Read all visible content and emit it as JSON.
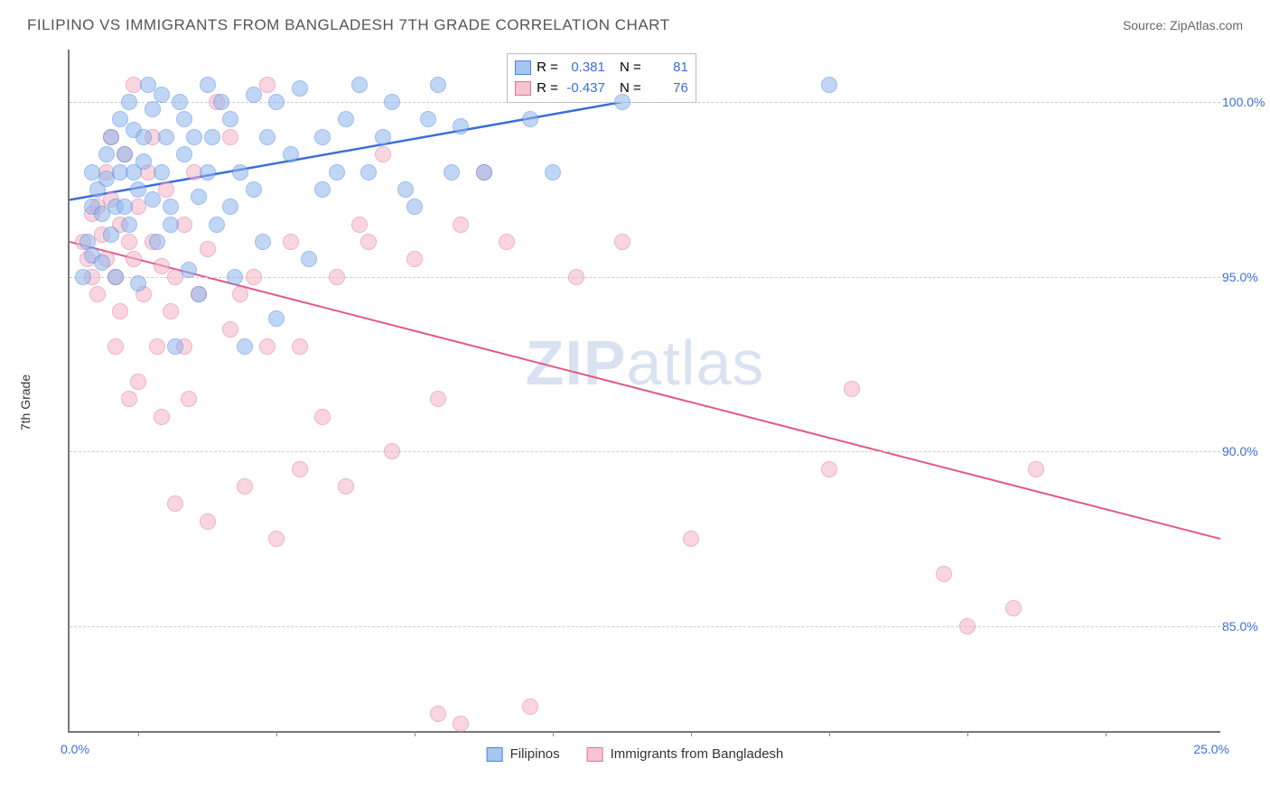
{
  "header": {
    "title": "FILIPINO VS IMMIGRANTS FROM BANGLADESH 7TH GRADE CORRELATION CHART",
    "source_prefix": "Source: ",
    "source": "ZipAtlas.com"
  },
  "chart": {
    "type": "scatter",
    "ylabel": "7th Grade",
    "xlim": [
      0,
      25
    ],
    "ylim": [
      82,
      101.5
    ],
    "x_axis": {
      "min_label": "0.0%",
      "max_label": "25.0%",
      "tick_positions_pct": [
        6,
        18,
        30,
        42,
        54,
        66,
        78,
        90
      ]
    },
    "y_axis": {
      "ticks": [
        {
          "value": 85,
          "label": "85.0%"
        },
        {
          "value": 90,
          "label": "90.0%"
        },
        {
          "value": 95,
          "label": "95.0%"
        },
        {
          "value": 100,
          "label": "100.0%"
        }
      ]
    },
    "grid_color": "#cccccc",
    "background_color": "#ffffff",
    "colors": {
      "series_a_fill": "#8fb6ec",
      "series_a_line": "#3b6fd8",
      "series_b_fill": "#f5b6c6",
      "series_b_line": "#e05a85",
      "label_text": "#3b6fd8"
    },
    "series_a": {
      "name": "Filipinos",
      "R": "0.381",
      "N": "81",
      "trend": {
        "x1": 0,
        "y1": 97.2,
        "x2": 12,
        "y2": 100.0
      },
      "points": [
        [
          0.3,
          95.0
        ],
        [
          0.4,
          96.0
        ],
        [
          0.5,
          95.6
        ],
        [
          0.5,
          97.0
        ],
        [
          0.5,
          98.0
        ],
        [
          0.6,
          97.5
        ],
        [
          0.7,
          95.4
        ],
        [
          0.7,
          96.8
        ],
        [
          0.8,
          98.5
        ],
        [
          0.8,
          97.8
        ],
        [
          0.9,
          96.2
        ],
        [
          0.9,
          99.0
        ],
        [
          1.0,
          97.0
        ],
        [
          1.0,
          95.0
        ],
        [
          1.1,
          98.0
        ],
        [
          1.1,
          99.5
        ],
        [
          1.2,
          98.5
        ],
        [
          1.2,
          97.0
        ],
        [
          1.3,
          96.5
        ],
        [
          1.3,
          100.0
        ],
        [
          1.4,
          98.0
        ],
        [
          1.4,
          99.2
        ],
        [
          1.5,
          97.5
        ],
        [
          1.5,
          94.8
        ],
        [
          1.6,
          99.0
        ],
        [
          1.6,
          98.3
        ],
        [
          1.7,
          100.5
        ],
        [
          1.8,
          97.2
        ],
        [
          1.8,
          99.8
        ],
        [
          1.9,
          96.0
        ],
        [
          2.0,
          98.0
        ],
        [
          2.0,
          100.2
        ],
        [
          2.1,
          99.0
        ],
        [
          2.2,
          97.0
        ],
        [
          2.2,
          96.5
        ],
        [
          2.3,
          93.0
        ],
        [
          2.4,
          100.0
        ],
        [
          2.5,
          98.5
        ],
        [
          2.5,
          99.5
        ],
        [
          2.6,
          95.2
        ],
        [
          2.7,
          99.0
        ],
        [
          2.8,
          97.3
        ],
        [
          2.8,
          94.5
        ],
        [
          3.0,
          100.5
        ],
        [
          3.0,
          98.0
        ],
        [
          3.1,
          99.0
        ],
        [
          3.2,
          96.5
        ],
        [
          3.3,
          100.0
        ],
        [
          3.5,
          97.0
        ],
        [
          3.5,
          99.5
        ],
        [
          3.6,
          95.0
        ],
        [
          3.7,
          98.0
        ],
        [
          3.8,
          93.0
        ],
        [
          4.0,
          100.2
        ],
        [
          4.0,
          97.5
        ],
        [
          4.2,
          96.0
        ],
        [
          4.3,
          99.0
        ],
        [
          4.5,
          93.8
        ],
        [
          4.5,
          100.0
        ],
        [
          4.8,
          98.5
        ],
        [
          5.0,
          100.4
        ],
        [
          5.2,
          95.5
        ],
        [
          5.5,
          99.0
        ],
        [
          5.5,
          97.5
        ],
        [
          5.8,
          98.0
        ],
        [
          6.0,
          99.5
        ],
        [
          6.3,
          100.5
        ],
        [
          6.5,
          98.0
        ],
        [
          6.8,
          99.0
        ],
        [
          7.0,
          100.0
        ],
        [
          7.3,
          97.5
        ],
        [
          7.5,
          97.0
        ],
        [
          7.8,
          99.5
        ],
        [
          8.0,
          100.5
        ],
        [
          8.3,
          98.0
        ],
        [
          8.5,
          99.3
        ],
        [
          9.0,
          98.0
        ],
        [
          10.0,
          99.5
        ],
        [
          10.5,
          98.0
        ],
        [
          12.0,
          100.0
        ],
        [
          16.5,
          100.5
        ]
      ]
    },
    "series_b": {
      "name": "Immigrants from Bangladesh",
      "R": "-0.437",
      "N": "76",
      "trend": {
        "x1": 0,
        "y1": 96.0,
        "x2": 25,
        "y2": 87.5
      },
      "points": [
        [
          0.3,
          96.0
        ],
        [
          0.4,
          95.5
        ],
        [
          0.5,
          96.8
        ],
        [
          0.5,
          95.0
        ],
        [
          0.6,
          97.0
        ],
        [
          0.6,
          94.5
        ],
        [
          0.7,
          96.2
        ],
        [
          0.8,
          98.0
        ],
        [
          0.8,
          95.5
        ],
        [
          0.9,
          97.2
        ],
        [
          0.9,
          99.0
        ],
        [
          1.0,
          95.0
        ],
        [
          1.0,
          93.0
        ],
        [
          1.1,
          96.5
        ],
        [
          1.1,
          94.0
        ],
        [
          1.2,
          98.5
        ],
        [
          1.3,
          91.5
        ],
        [
          1.3,
          96.0
        ],
        [
          1.4,
          95.5
        ],
        [
          1.4,
          100.5
        ],
        [
          1.5,
          92.0
        ],
        [
          1.5,
          97.0
        ],
        [
          1.6,
          94.5
        ],
        [
          1.7,
          98.0
        ],
        [
          1.8,
          96.0
        ],
        [
          1.8,
          99.0
        ],
        [
          1.9,
          93.0
        ],
        [
          2.0,
          95.3
        ],
        [
          2.0,
          91.0
        ],
        [
          2.1,
          97.5
        ],
        [
          2.2,
          94.0
        ],
        [
          2.3,
          95.0
        ],
        [
          2.3,
          88.5
        ],
        [
          2.5,
          93.0
        ],
        [
          2.5,
          96.5
        ],
        [
          2.6,
          91.5
        ],
        [
          2.7,
          98.0
        ],
        [
          2.8,
          94.5
        ],
        [
          3.0,
          88.0
        ],
        [
          3.0,
          95.8
        ],
        [
          3.2,
          100.0
        ],
        [
          3.5,
          93.5
        ],
        [
          3.5,
          99.0
        ],
        [
          3.7,
          94.5
        ],
        [
          3.8,
          89.0
        ],
        [
          4.0,
          95.0
        ],
        [
          4.3,
          93.0
        ],
        [
          4.3,
          100.5
        ],
        [
          4.5,
          87.5
        ],
        [
          4.8,
          96.0
        ],
        [
          5.0,
          89.5
        ],
        [
          5.0,
          93.0
        ],
        [
          5.5,
          91.0
        ],
        [
          5.8,
          95.0
        ],
        [
          6.0,
          89.0
        ],
        [
          6.3,
          96.5
        ],
        [
          6.5,
          96.0
        ],
        [
          6.8,
          98.5
        ],
        [
          7.0,
          90.0
        ],
        [
          7.5,
          95.5
        ],
        [
          8.0,
          91.5
        ],
        [
          8.0,
          82.5
        ],
        [
          8.5,
          82.2
        ],
        [
          8.5,
          96.5
        ],
        [
          9.0,
          98.0
        ],
        [
          9.5,
          96.0
        ],
        [
          10.0,
          82.7
        ],
        [
          11.0,
          95.0
        ],
        [
          12.0,
          96.0
        ],
        [
          13.5,
          87.5
        ],
        [
          16.5,
          89.5
        ],
        [
          17.0,
          91.8
        ],
        [
          19.0,
          86.5
        ],
        [
          19.5,
          85.0
        ],
        [
          20.5,
          85.5
        ],
        [
          21.0,
          89.5
        ]
      ]
    },
    "legend": {
      "r_label": "R =",
      "n_label": "N ="
    },
    "watermark_a": "ZIP",
    "watermark_b": "atlas"
  }
}
